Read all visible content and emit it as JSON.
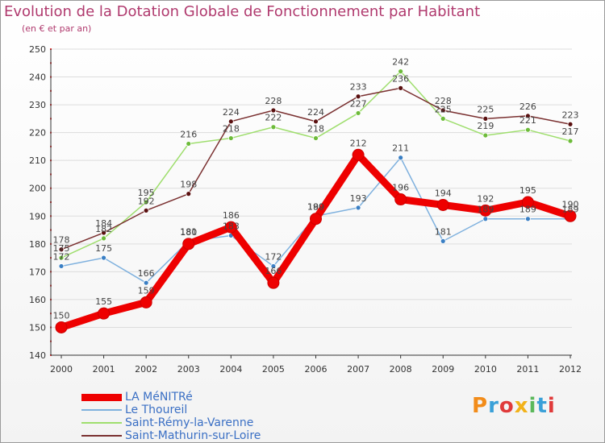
{
  "header": {
    "title": "Evolution de la Dotation Globale de Fonctionnement par Habitant",
    "subtitle": "(en € et par an)"
  },
  "logo": {
    "text": "Proxiti"
  },
  "colors": {
    "title": "#b03a6e",
    "axis": "#333333",
    "grid": "#dddddd"
  },
  "chart_data": {
    "type": "line",
    "title": "Evolution de la Dotation Globale de Fonctionnement par Habitant",
    "subtitle": "(en € et par an)",
    "xlabel": "",
    "ylabel": "",
    "x": [
      "2000",
      "2001",
      "2002",
      "2003",
      "2004",
      "2005",
      "2006",
      "2007",
      "2008",
      "2009",
      "2010",
      "2011",
      "2012"
    ],
    "ylim": [
      140,
      250
    ],
    "yticks": [
      140,
      150,
      160,
      170,
      180,
      190,
      200,
      210,
      220,
      230,
      240,
      250
    ],
    "legend_position": "bottom-left",
    "series": [
      {
        "name": "LA MéNITRé",
        "color": "#ee0000",
        "marker": "#ee0000",
        "emphasis": true,
        "values": [
          150,
          155,
          159,
          180,
          186,
          166,
          189,
          212,
          196,
          194,
          192,
          195,
          190
        ]
      },
      {
        "name": "Le Thoureil",
        "color": "#7fb1de",
        "marker": "#3a7fc4",
        "emphasis": false,
        "values": [
          172,
          175,
          166,
          181,
          183,
          172,
          190,
          193,
          211,
          181,
          189,
          189,
          189
        ]
      },
      {
        "name": "Saint-Rémy-la-Varenne",
        "color": "#9fde6e",
        "marker": "#6dbb3a",
        "emphasis": false,
        "values": [
          175,
          182,
          195,
          216,
          218,
          222,
          218,
          227,
          242,
          225,
          219,
          221,
          217
        ]
      },
      {
        "name": "Saint-Mathurin-sur-Loire",
        "color": "#7a3030",
        "marker": "#5a1010",
        "emphasis": false,
        "values": [
          178,
          184,
          192,
          198,
          224,
          228,
          224,
          233,
          236,
          228,
          225,
          226,
          223
        ]
      }
    ]
  }
}
